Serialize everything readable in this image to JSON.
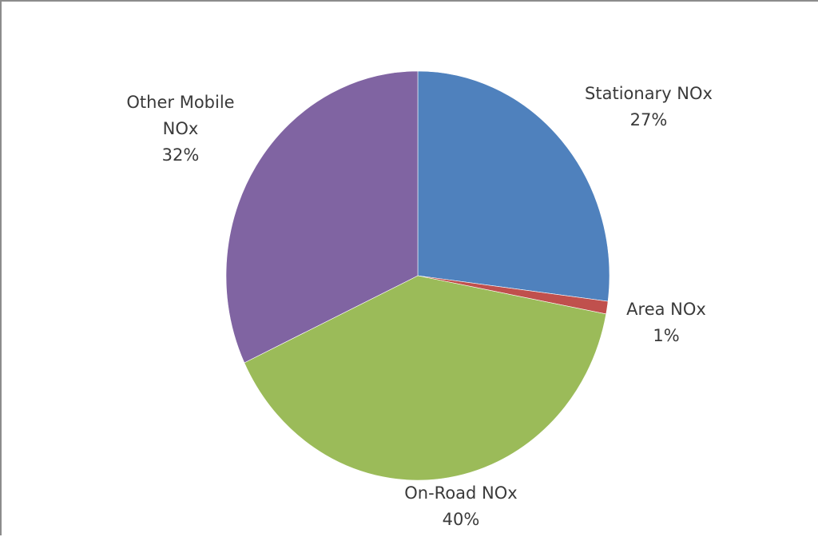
{
  "chart_data": {
    "type": "pie",
    "title": "",
    "start_angle_deg": 0,
    "direction": "clockwise",
    "slices": [
      {
        "name": "Stationary NOx",
        "value": 27,
        "value_label": "27%",
        "label_lines": [
          "Stationary NOx"
        ],
        "color": "#4f81bd"
      },
      {
        "name": "Area NOx",
        "value": 1,
        "value_label": "1%",
        "label_lines": [
          "Area NOx"
        ],
        "color": "#c0504d"
      },
      {
        "name": "On-Road NOx",
        "value": 40,
        "value_label": "40%",
        "label_lines": [
          "On-Road NOx"
        ],
        "color": "#9bbb59"
      },
      {
        "name": "Other Mobile NOx",
        "value": 32,
        "value_label": "32%",
        "label_lines": [
          "Other Mobile",
          "NOx"
        ],
        "color": "#8064a2"
      }
    ],
    "legend": "none",
    "labels": "outside-end"
  }
}
